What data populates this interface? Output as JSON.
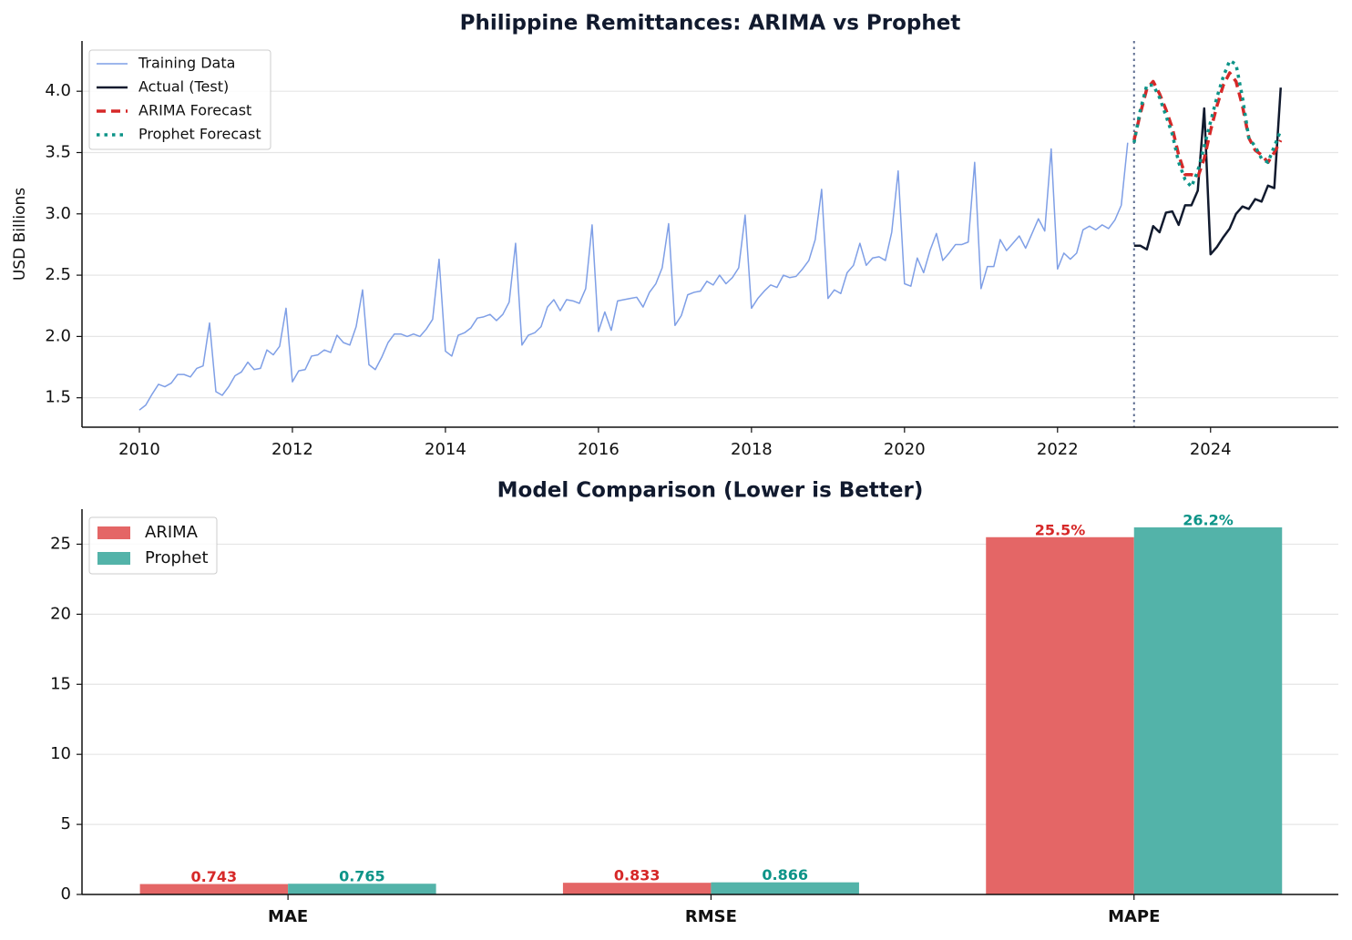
{
  "chart_data": [
    {
      "type": "line",
      "title": "Philippine Remittances: ARIMA vs Prophet",
      "y_label": "USD Billions",
      "xlim": [
        2009.25,
        2025.67
      ],
      "ylim": [
        1.26,
        4.41
      ],
      "xticks": [
        2010,
        2012,
        2014,
        2016,
        2018,
        2020,
        2022,
        2024
      ],
      "yticks": [
        1.5,
        {
          "value": 2,
          "label": "2.0"
        },
        2.5,
        {
          "value": 3,
          "label": "3.0"
        },
        3.5,
        {
          "value": 4,
          "label": "4.0"
        }
      ],
      "grid": true,
      "legend": "upper-left",
      "vlines": [
        {
          "x": 2023,
          "color": "#5b6b8f"
        }
      ],
      "series": [
        {
          "name": "Training Data",
          "color": "#7f9fe6",
          "dash": "solid",
          "width": 1.5,
          "x": [
            2010,
            2010.083,
            2010.167,
            2010.25,
            2010.333,
            2010.417,
            2010.5,
            2010.583,
            2010.667,
            2010.75,
            2010.833,
            2010.917,
            2011,
            2011.083,
            2011.167,
            2011.25,
            2011.333,
            2011.417,
            2011.5,
            2011.583,
            2011.667,
            2011.75,
            2011.833,
            2011.917,
            2012,
            2012.083,
            2012.167,
            2012.25,
            2012.333,
            2012.417,
            2012.5,
            2012.583,
            2012.667,
            2012.75,
            2012.833,
            2012.917,
            2013,
            2013.083,
            2013.167,
            2013.25,
            2013.333,
            2013.417,
            2013.5,
            2013.583,
            2013.667,
            2013.75,
            2013.833,
            2013.917,
            2014,
            2014.083,
            2014.167,
            2014.25,
            2014.333,
            2014.417,
            2014.5,
            2014.583,
            2014.667,
            2014.75,
            2014.833,
            2014.917,
            2015,
            2015.083,
            2015.167,
            2015.25,
            2015.333,
            2015.417,
            2015.5,
            2015.583,
            2015.667,
            2015.75,
            2015.833,
            2015.917,
            2016,
            2016.083,
            2016.167,
            2016.25,
            2016.333,
            2016.417,
            2016.5,
            2016.583,
            2016.667,
            2016.75,
            2016.833,
            2016.917,
            2017,
            2017.083,
            2017.167,
            2017.25,
            2017.333,
            2017.417,
            2017.5,
            2017.583,
            2017.667,
            2017.75,
            2017.833,
            2017.917,
            2018,
            2018.083,
            2018.167,
            2018.25,
            2018.333,
            2018.417,
            2018.5,
            2018.583,
            2018.667,
            2018.75,
            2018.833,
            2018.917,
            2019,
            2019.083,
            2019.167,
            2019.25,
            2019.333,
            2019.417,
            2019.5,
            2019.583,
            2019.667,
            2019.75,
            2019.833,
            2019.917,
            2020,
            2020.083,
            2020.167,
            2020.25,
            2020.333,
            2020.417,
            2020.5,
            2020.583,
            2020.667,
            2020.75,
            2020.833,
            2020.917,
            2021,
            2021.083,
            2021.167,
            2021.25,
            2021.333,
            2021.417,
            2021.5,
            2021.583,
            2021.667,
            2021.75,
            2021.833,
            2021.917,
            2022,
            2022.083,
            2022.167,
            2022.25,
            2022.333,
            2022.417,
            2022.5,
            2022.583,
            2022.667,
            2022.75,
            2022.833,
            2022.917
          ],
          "values": [
            1.4,
            1.44,
            1.53,
            1.61,
            1.59,
            1.62,
            1.69,
            1.69,
            1.67,
            1.74,
            1.76,
            2.11,
            1.55,
            1.52,
            1.59,
            1.68,
            1.71,
            1.79,
            1.73,
            1.74,
            1.89,
            1.85,
            1.92,
            2.23,
            1.63,
            1.72,
            1.73,
            1.84,
            1.85,
            1.89,
            1.87,
            2.01,
            1.95,
            1.93,
            2.08,
            2.38,
            1.77,
            1.73,
            1.83,
            1.95,
            2.02,
            2.02,
            2.0,
            2.02,
            2.0,
            2.06,
            2.14,
            2.63,
            1.88,
            1.84,
            2.01,
            2.03,
            2.07,
            2.15,
            2.16,
            2.18,
            2.13,
            2.18,
            2.28,
            2.76,
            1.93,
            2.01,
            2.03,
            2.08,
            2.24,
            2.3,
            2.21,
            2.3,
            2.29,
            2.27,
            2.39,
            2.91,
            2.04,
            2.2,
            2.05,
            2.29,
            2.3,
            2.31,
            2.32,
            2.24,
            2.36,
            2.43,
            2.56,
            2.92,
            2.09,
            2.17,
            2.34,
            2.36,
            2.37,
            2.45,
            2.42,
            2.5,
            2.43,
            2.48,
            2.56,
            2.99,
            2.23,
            2.31,
            2.37,
            2.42,
            2.4,
            2.5,
            2.48,
            2.49,
            2.55,
            2.62,
            2.79,
            3.2,
            2.31,
            2.38,
            2.35,
            2.52,
            2.58,
            2.76,
            2.58,
            2.64,
            2.65,
            2.62,
            2.85,
            3.35,
            2.43,
            2.41,
            2.64,
            2.52,
            2.7,
            2.84,
            2.62,
            2.68,
            2.75,
            2.75,
            2.77,
            3.42,
            2.39,
            2.57,
            2.57,
            2.79,
            2.7,
            2.76,
            2.82,
            2.72,
            2.84,
            2.96,
            2.86,
            3.53,
            2.55,
            2.68,
            2.63,
            2.68,
            2.87,
            2.9,
            2.87,
            2.91,
            2.88,
            2.95,
            3.07,
            3.58
          ]
        },
        {
          "name": "Actual (Test)",
          "color": "#111a2e",
          "dash": "solid",
          "width": 2.5,
          "x": [
            2023,
            2023.083,
            2023.167,
            2023.25,
            2023.333,
            2023.417,
            2023.5,
            2023.583,
            2023.667,
            2023.75,
            2023.833,
            2023.917,
            2024,
            2024.083,
            2024.167,
            2024.25,
            2024.333,
            2024.417,
            2024.5,
            2024.583,
            2024.667,
            2024.75,
            2024.833,
            2024.917
          ],
          "values": [
            2.74,
            2.74,
            2.71,
            2.9,
            2.85,
            3.01,
            3.02,
            2.91,
            3.07,
            3.07,
            3.19,
            3.86,
            2.67,
            2.73,
            2.81,
            2.88,
            3.0,
            3.06,
            3.04,
            3.12,
            3.1,
            3.23,
            3.21,
            4.03
          ]
        },
        {
          "name": "ARIMA Forecast",
          "color": "#d62828",
          "dash": "dashed",
          "width": 3.5,
          "x": [
            2023,
            2023.083,
            2023.167,
            2023.25,
            2023.333,
            2023.417,
            2023.5,
            2023.583,
            2023.667,
            2023.75,
            2023.833,
            2023.917,
            2024,
            2024.083,
            2024.167,
            2024.25,
            2024.333,
            2024.417,
            2024.5,
            2024.583,
            2024.667,
            2024.75,
            2024.833,
            2024.917
          ],
          "values": [
            3.6,
            3.82,
            4.02,
            4.08,
            3.98,
            3.85,
            3.7,
            3.48,
            3.32,
            3.32,
            3.3,
            3.45,
            3.68,
            3.88,
            4.05,
            4.15,
            4.08,
            3.88,
            3.62,
            3.52,
            3.48,
            3.42,
            3.5,
            3.6
          ]
        },
        {
          "name": "Prophet Forecast",
          "color": "#0d9488",
          "dash": "dotted",
          "width": 3.5,
          "x": [
            2023,
            2023.083,
            2023.167,
            2023.25,
            2023.333,
            2023.417,
            2023.5,
            2023.583,
            2023.667,
            2023.75,
            2023.833,
            2023.917,
            2024,
            2024.083,
            2024.167,
            2024.25,
            2024.333,
            2024.417,
            2024.5,
            2024.583,
            2024.667,
            2024.75,
            2024.833,
            2024.917
          ],
          "values": [
            3.58,
            3.85,
            4.05,
            4.05,
            3.95,
            3.8,
            3.65,
            3.42,
            3.28,
            3.22,
            3.35,
            3.55,
            3.75,
            3.95,
            4.12,
            4.25,
            4.22,
            3.95,
            3.62,
            3.55,
            3.45,
            3.42,
            3.55,
            3.68
          ]
        }
      ]
    },
    {
      "type": "bar",
      "title": "Model Comparison (Lower is Better)",
      "categories": [
        "MAE",
        "RMSE",
        "MAPE"
      ],
      "ylim": [
        0,
        27.5
      ],
      "yticks": [
        0,
        5,
        10,
        15,
        20,
        25
      ],
      "grid": true,
      "legend": "upper-left",
      "series": [
        {
          "name": "ARIMA",
          "color": "#e46666",
          "label_color": "#d62828",
          "values": [
            0.743,
            0.833,
            25.5
          ],
          "value_labels": [
            "0.743",
            "0.833",
            "25.5%"
          ]
        },
        {
          "name": "Prophet",
          "color": "#53b3a9",
          "label_color": "#0d9488",
          "values": [
            0.765,
            0.866,
            26.2
          ],
          "value_labels": [
            "0.765",
            "0.866",
            "26.2%"
          ]
        }
      ]
    }
  ]
}
